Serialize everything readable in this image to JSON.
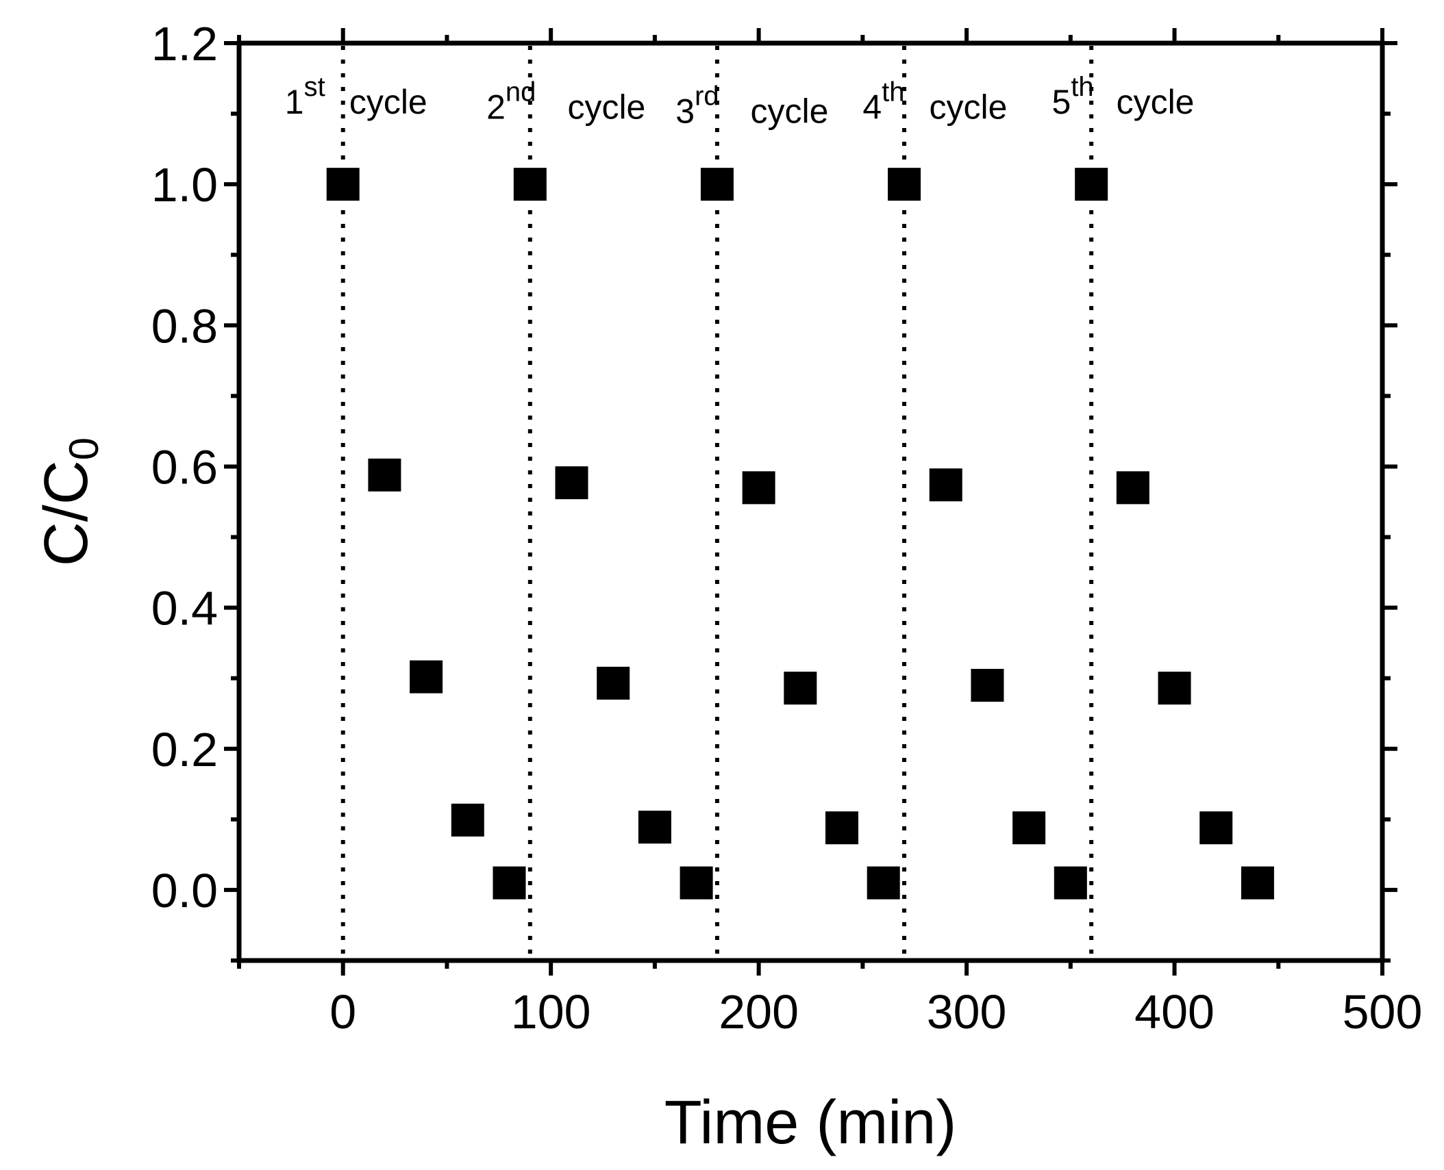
{
  "chart_data": {
    "type": "scatter",
    "xlabel": "Time (min)",
    "ylabel": {
      "main": "C/C",
      "sub": "0"
    },
    "xlim": [
      -50,
      500
    ],
    "ylim": [
      -0.1,
      1.2
    ],
    "x_ticks": [
      0,
      100,
      200,
      300,
      400,
      500
    ],
    "x_tick_labels": [
      "0",
      "100",
      "200",
      "300",
      "400",
      "500"
    ],
    "y_ticks": [
      0.0,
      0.2,
      0.4,
      0.6,
      0.8,
      1.0,
      1.2
    ],
    "y_tick_labels": [
      "0.0",
      "0.2",
      "0.4",
      "0.6",
      "0.8",
      "1.0",
      "1.2"
    ],
    "marker": {
      "shape": "square",
      "color": "#000000"
    },
    "series": [
      {
        "points": [
          [
            0,
            1.0
          ],
          [
            20,
            0.588
          ],
          [
            40,
            0.302
          ],
          [
            60,
            0.099
          ],
          [
            80,
            0.01
          ],
          [
            90,
            1.0
          ],
          [
            110,
            0.577
          ],
          [
            130,
            0.293
          ],
          [
            150,
            0.089
          ],
          [
            170,
            0.01
          ],
          [
            180,
            1.0
          ],
          [
            200,
            0.57
          ],
          [
            220,
            0.286
          ],
          [
            240,
            0.088
          ],
          [
            260,
            0.01
          ],
          [
            270,
            1.0
          ],
          [
            290,
            0.574
          ],
          [
            310,
            0.29
          ],
          [
            330,
            0.088
          ],
          [
            350,
            0.01
          ],
          [
            360,
            1.0
          ],
          [
            380,
            0.57
          ],
          [
            400,
            0.286
          ],
          [
            420,
            0.088
          ],
          [
            440,
            0.01
          ]
        ]
      }
    ],
    "cycle_dividers": [
      0,
      90,
      180,
      270,
      360
    ],
    "annotations": [
      {
        "num": "1",
        "sup": "st",
        "word": "cycle",
        "x": -28,
        "y": 1.1,
        "word_x": 3,
        "word_y": 1.1
      },
      {
        "num": "2",
        "sup": "nd",
        "word": "cycle",
        "x": 69,
        "y": 1.093,
        "word_x": 108,
        "word_y": 1.093
      },
      {
        "num": "3",
        "sup": "rd",
        "word": "cycle",
        "x": 160,
        "y": 1.087,
        "word_x": 196,
        "word_y": 1.087
      },
      {
        "num": "4",
        "sup": "th",
        "word": "cycle",
        "x": 250,
        "y": 1.093,
        "word_x": 282,
        "word_y": 1.093
      },
      {
        "num": "5",
        "sup": "th",
        "word": "cycle",
        "x": 341,
        "y": 1.1,
        "word_x": 372,
        "word_y": 1.1
      }
    ]
  }
}
